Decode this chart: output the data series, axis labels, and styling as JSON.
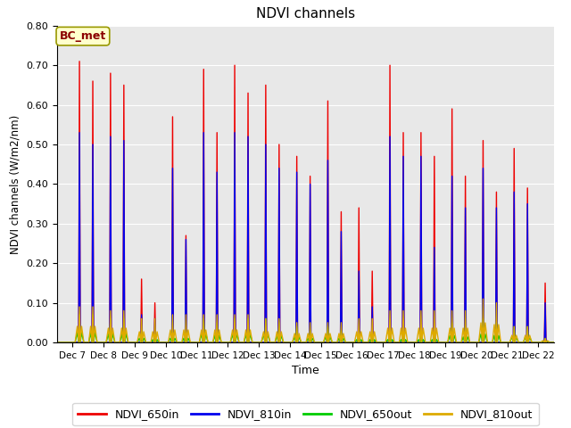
{
  "title": "NDVI channels",
  "xlabel": "Time",
  "ylabel": "NDVI channels (W/m2/nm)",
  "ylim": [
    0.0,
    0.8
  ],
  "yticks": [
    0.0,
    0.1,
    0.2,
    0.3,
    0.4,
    0.5,
    0.6,
    0.7,
    0.8
  ],
  "annotation": "BC_met",
  "bg_color": "#e8e8e8",
  "colors": {
    "NDVI_650in": "#ee0000",
    "NDVI_810in": "#0000ee",
    "NDVI_650out": "#00cc00",
    "NDVI_810out": "#ddaa00"
  },
  "days": [
    7,
    8,
    9,
    10,
    11,
    12,
    13,
    14,
    15,
    16,
    17,
    18,
    19,
    20,
    21,
    22
  ],
  "peak1_650in": [
    0.71,
    0.68,
    0.16,
    0.57,
    0.69,
    0.7,
    0.65,
    0.47,
    0.61,
    0.34,
    0.7,
    0.53,
    0.59,
    0.51,
    0.49,
    0.15
  ],
  "peak2_650in": [
    0.66,
    0.65,
    0.1,
    0.27,
    0.53,
    0.63,
    0.5,
    0.42,
    0.33,
    0.18,
    0.53,
    0.47,
    0.42,
    0.38,
    0.39,
    0.13
  ],
  "peak1_810in": [
    0.53,
    0.52,
    0.07,
    0.44,
    0.53,
    0.53,
    0.5,
    0.43,
    0.46,
    0.18,
    0.52,
    0.47,
    0.42,
    0.44,
    0.38,
    0.1
  ],
  "peak2_810in": [
    0.5,
    0.51,
    0.06,
    0.26,
    0.43,
    0.52,
    0.44,
    0.4,
    0.28,
    0.09,
    0.47,
    0.24,
    0.34,
    0.34,
    0.35,
    0.09
  ],
  "peak1_650out": [
    0.07,
    0.06,
    0.03,
    0.03,
    0.06,
    0.06,
    0.06,
    0.04,
    0.04,
    0.02,
    0.02,
    0.02,
    0.05,
    0.06,
    0.04,
    0.01
  ],
  "peak2_650out": [
    0.07,
    0.06,
    0.02,
    0.03,
    0.05,
    0.06,
    0.05,
    0.03,
    0.03,
    0.02,
    0.02,
    0.02,
    0.04,
    0.05,
    0.04,
    0.01
  ],
  "peak1_810out": [
    0.09,
    0.08,
    0.06,
    0.07,
    0.07,
    0.07,
    0.06,
    0.05,
    0.05,
    0.06,
    0.08,
    0.08,
    0.08,
    0.11,
    0.04,
    0.01
  ],
  "peak2_810out": [
    0.09,
    0.08,
    0.06,
    0.07,
    0.07,
    0.07,
    0.06,
    0.05,
    0.05,
    0.06,
    0.08,
    0.08,
    0.08,
    0.1,
    0.04,
    0.01
  ],
  "figsize": [
    6.4,
    4.8
  ],
  "dpi": 100
}
